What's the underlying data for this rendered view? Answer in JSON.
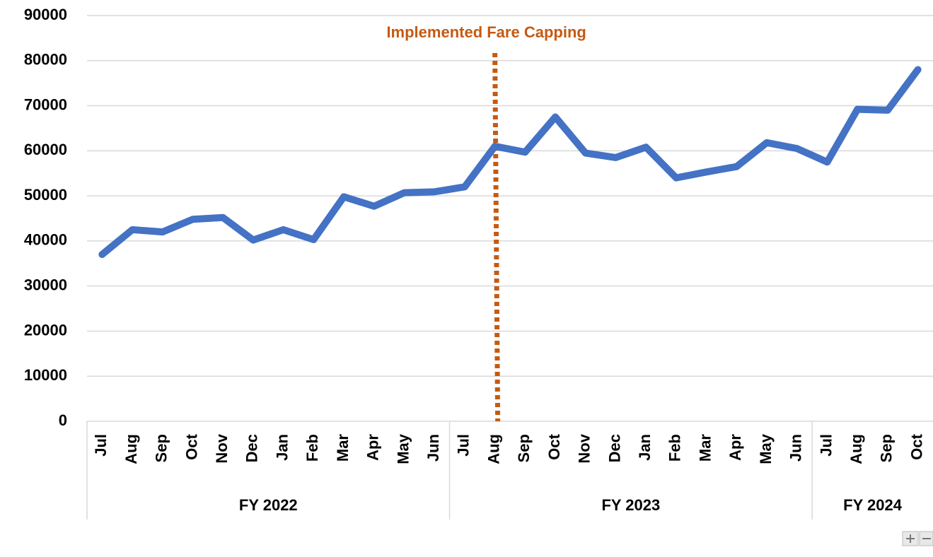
{
  "chart_data": {
    "type": "line",
    "groups": [
      {
        "label": "FY 2022",
        "categories": [
          "Jul",
          "Aug",
          "Sep",
          "Oct",
          "Nov",
          "Dec",
          "Jan",
          "Feb",
          "Mar",
          "Apr",
          "May",
          "Jun"
        ]
      },
      {
        "label": "FY 2023",
        "categories": [
          "Jul",
          "Aug",
          "Sep",
          "Oct",
          "Nov",
          "Dec",
          "Jan",
          "Feb",
          "Mar",
          "Apr",
          "May",
          "Jun"
        ]
      },
      {
        "label": "FY 2024",
        "categories": [
          "Jul",
          "Aug",
          "Sep",
          "Oct"
        ]
      }
    ],
    "series": [
      {
        "color": "#4472c4",
        "values": [
          37000,
          42500,
          42000,
          44800,
          45200,
          40200,
          42500,
          40300,
          49800,
          47700,
          50700,
          50900,
          52000,
          61000,
          59700,
          67500,
          59500,
          58500,
          60800,
          54000,
          55300,
          56500,
          61800,
          60500,
          57500,
          69200,
          69000,
          78000
        ]
      }
    ],
    "ylim": [
      0,
      90000
    ],
    "yticks": [
      0,
      10000,
      20000,
      30000,
      40000,
      50000,
      60000,
      70000,
      80000,
      90000
    ],
    "grid": true,
    "annotation": {
      "text": "Implemented Fare Capping",
      "group": "FY 2023",
      "category": "Aug",
      "color": "#c55a11"
    }
  }
}
